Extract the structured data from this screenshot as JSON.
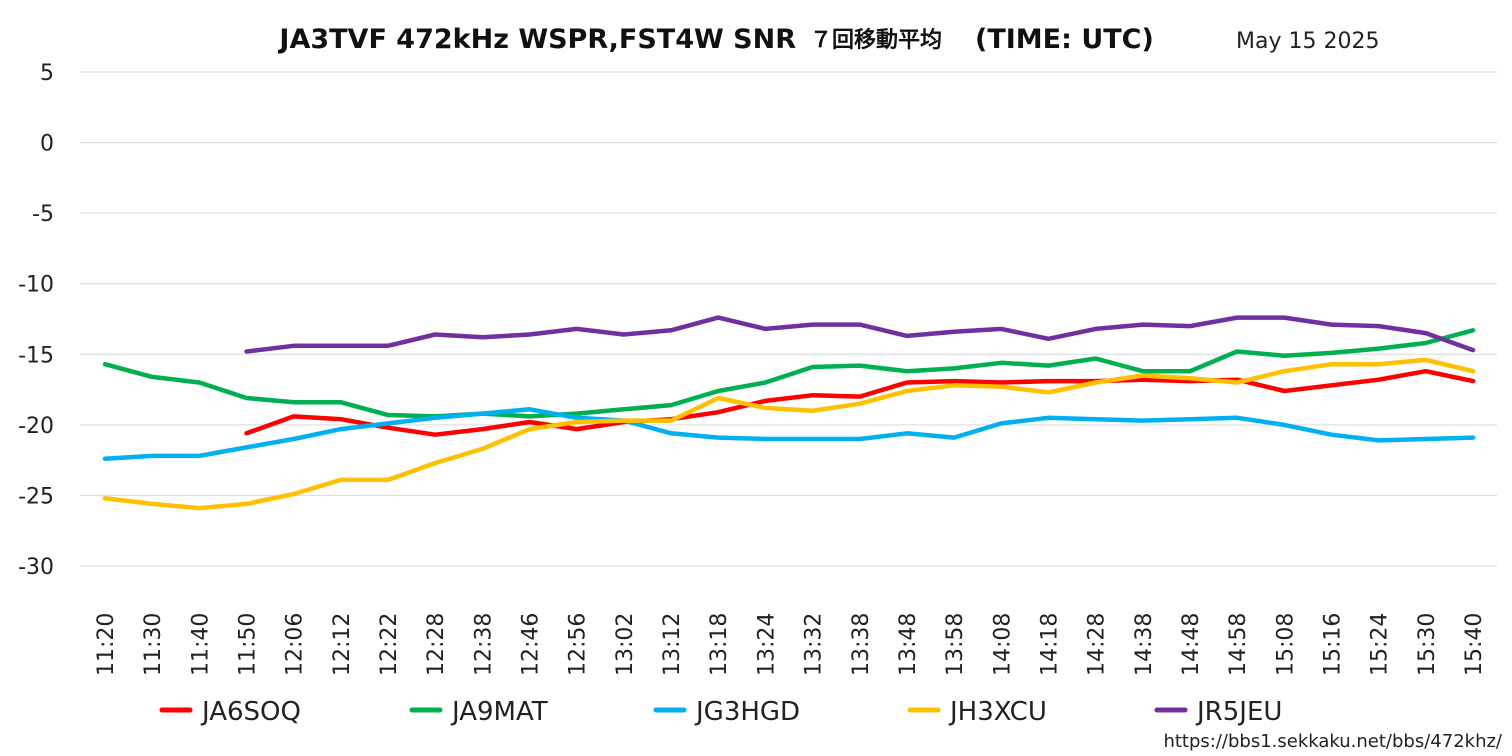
{
  "header": {
    "title_main": "JA3TVF 472kHz WSPR,FST4W SNR",
    "title_jp": "７回移動平均",
    "title_time": "(TIME: UTC)",
    "date": "May 15 2025"
  },
  "footer": {
    "url": "https://bbs1.sekkaku.net/bbs/472khz/"
  },
  "chart_data": {
    "type": "line",
    "title": "JA3TVF 472kHz WSPR,FST4W SNR ７回移動平均 (TIME: UTC)",
    "xlabel": "",
    "ylabel": "",
    "ylim": [
      -30,
      5
    ],
    "yticks": [
      "5",
      "0",
      "-5",
      "-10",
      "-15",
      "-20",
      "-25",
      "-30"
    ],
    "grid": true,
    "legend_position": "bottom",
    "categories": [
      "11:20",
      "11:30",
      "11:40",
      "11:50",
      "12:06",
      "12:12",
      "12:22",
      "12:28",
      "12:38",
      "12:46",
      "12:56",
      "13:02",
      "13:12",
      "13:18",
      "13:24",
      "13:32",
      "13:38",
      "13:48",
      "13:58",
      "14:08",
      "14:18",
      "14:28",
      "14:38",
      "14:48",
      "14:58",
      "15:08",
      "15:16",
      "15:24",
      "15:30",
      "15:40"
    ],
    "series": [
      {
        "name": "JA6SOQ",
        "color": "#ff0000",
        "values": [
          null,
          null,
          null,
          -20.6,
          -19.4,
          -19.6,
          -20.2,
          -20.7,
          -20.3,
          -19.8,
          -20.3,
          -19.8,
          -19.6,
          -19.1,
          -18.3,
          -17.9,
          -18.0,
          -17.0,
          -16.9,
          -17.0,
          -16.9,
          -16.9,
          -16.8,
          -16.9,
          -16.8,
          -17.6,
          -17.2,
          -16.8,
          -16.2,
          -16.9
        ]
      },
      {
        "name": "JA9MAT",
        "color": "#00b050",
        "values": [
          -15.7,
          -16.6,
          -17.0,
          -18.1,
          -18.4,
          -18.4,
          -19.3,
          -19.4,
          -19.2,
          -19.4,
          -19.2,
          -18.9,
          -18.6,
          -17.6,
          -17.0,
          -15.9,
          -15.8,
          -16.2,
          -16.0,
          -15.6,
          -15.8,
          -15.3,
          -16.2,
          -16.2,
          -14.8,
          -15.1,
          -14.9,
          -14.6,
          -14.2,
          -13.3
        ]
      },
      {
        "name": "JG3HGD",
        "color": "#00b0f0",
        "values": [
          -22.4,
          -22.2,
          -22.2,
          -21.6,
          -21.0,
          -20.3,
          -19.9,
          -19.5,
          -19.2,
          -18.9,
          -19.5,
          -19.7,
          -20.6,
          -20.9,
          -21.0,
          -21.0,
          -21.0,
          -20.6,
          -20.9,
          -19.9,
          -19.5,
          -19.6,
          -19.7,
          -19.6,
          -19.5,
          -20.0,
          -20.7,
          -21.1,
          -21.0,
          -20.9
        ]
      },
      {
        "name": "JH3XCU",
        "color": "#ffc000",
        "values": [
          -25.2,
          -25.6,
          -25.9,
          -25.6,
          -24.9,
          -23.9,
          -23.9,
          -22.7,
          -21.7,
          -20.3,
          -19.8,
          -19.7,
          -19.7,
          -18.1,
          -18.8,
          -19.0,
          -18.5,
          -17.6,
          -17.2,
          -17.3,
          -17.7,
          -17.0,
          -16.5,
          -16.7,
          -17.0,
          -16.2,
          -15.7,
          -15.7,
          -15.4,
          -16.2
        ]
      },
      {
        "name": "JR5JEU",
        "color": "#7030a0",
        "values": [
          null,
          null,
          null,
          -14.8,
          -14.4,
          -14.4,
          -14.4,
          -13.6,
          -13.8,
          -13.6,
          -13.2,
          -13.6,
          -13.3,
          -12.4,
          -13.2,
          -12.9,
          -12.9,
          -13.7,
          -13.4,
          -13.2,
          -13.9,
          -13.2,
          -12.9,
          -13.0,
          -12.4,
          -12.4,
          -12.9,
          -13.0,
          -13.5,
          -14.7
        ]
      }
    ]
  }
}
